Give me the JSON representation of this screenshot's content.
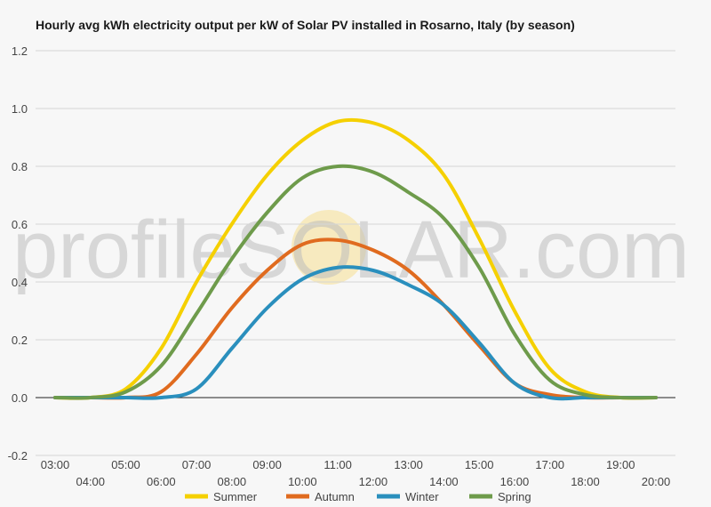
{
  "chart_data": {
    "type": "line",
    "title": "Hourly avg kWh electricity output per kW of Solar PV installed in Rosarno, Italy (by season)",
    "xlabel": "",
    "ylabel": "",
    "x": [
      "03:00",
      "04:00",
      "05:00",
      "06:00",
      "07:00",
      "08:00",
      "09:00",
      "10:00",
      "11:00",
      "12:00",
      "13:00",
      "14:00",
      "15:00",
      "16:00",
      "17:00",
      "18:00",
      "19:00",
      "20:00"
    ],
    "ylim": [
      -0.2,
      1.2
    ],
    "yticks": [
      "-0.2",
      "0.0",
      "0.2",
      "0.4",
      "0.6",
      "0.8",
      "1.0",
      "1.2"
    ],
    "grid": true,
    "legend_position": "bottom",
    "watermark": "profileSOLAR.com",
    "series": [
      {
        "name": "Summer",
        "color": "#f5d000",
        "values": [
          0.0,
          0.0,
          0.03,
          0.17,
          0.4,
          0.6,
          0.77,
          0.89,
          0.955,
          0.95,
          0.89,
          0.77,
          0.55,
          0.3,
          0.1,
          0.02,
          0.0,
          0.0
        ]
      },
      {
        "name": "Autumn",
        "color": "#e06b1f",
        "values": [
          0.0,
          0.0,
          0.0,
          0.02,
          0.15,
          0.31,
          0.44,
          0.53,
          0.545,
          0.51,
          0.44,
          0.32,
          0.18,
          0.05,
          0.01,
          0.0,
          0.0,
          0.0
        ]
      },
      {
        "name": "Winter",
        "color": "#2a8fbd",
        "values": [
          0.0,
          0.0,
          0.0,
          0.0,
          0.03,
          0.17,
          0.31,
          0.41,
          0.45,
          0.44,
          0.39,
          0.32,
          0.19,
          0.05,
          0.0,
          0.0,
          0.0,
          0.0
        ]
      },
      {
        "name": "Spring",
        "color": "#6e9b4b",
        "values": [
          0.0,
          0.0,
          0.02,
          0.11,
          0.29,
          0.48,
          0.64,
          0.76,
          0.8,
          0.78,
          0.71,
          0.62,
          0.45,
          0.22,
          0.06,
          0.01,
          0.0,
          0.0
        ]
      }
    ]
  }
}
